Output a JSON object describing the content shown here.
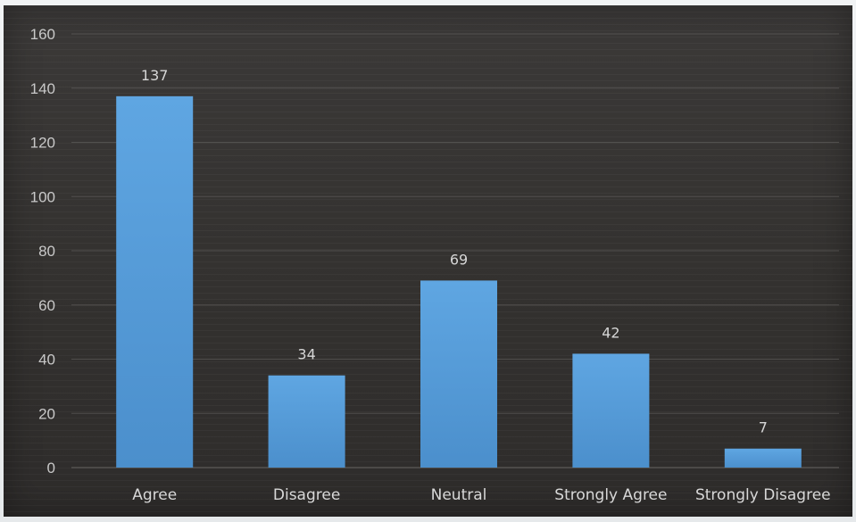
{
  "chart_data": {
    "type": "bar",
    "categories": [
      "Agree",
      "Disagree",
      "Neutral",
      "Strongly Agree",
      "Strongly Disagree"
    ],
    "values": [
      137,
      34,
      69,
      42,
      7
    ],
    "title": "",
    "xlabel": "",
    "ylabel": "",
    "ylim": [
      0,
      160
    ],
    "yticks": [
      "0",
      "20",
      "40",
      "60",
      "80",
      "100",
      "120",
      "140",
      "160"
    ],
    "data_labels": [
      "137",
      "34",
      "69",
      "42",
      "7"
    ],
    "grid": true,
    "legend": "none",
    "colors": {
      "bar": "#5a9fdb",
      "background": "#363433",
      "gridline": "#6a6866"
    }
  }
}
